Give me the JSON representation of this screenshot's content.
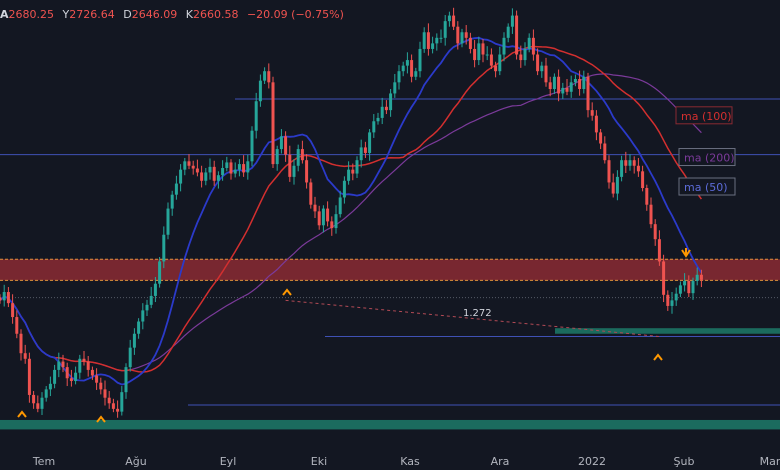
{
  "ohlc": {
    "o_label": "A",
    "o": "2680.25",
    "h_label": "Y",
    "h": "2726.64",
    "l_label": "D",
    "l": "2646.09",
    "c_label": "K",
    "c": "2660.58",
    "change": "−20.09 (−0.75%)"
  },
  "colors": {
    "background": "#131722",
    "up": "#26a69a",
    "down": "#ef5350",
    "ma50": "#2b3aca",
    "ma100": "#d32f2f",
    "ma200": "#7b3a9a",
    "level_line": "#3f51b5",
    "resistance_zone": "#8b2a32",
    "support_zone": "#1b6b5e",
    "arrow_up": "#ff9800"
  },
  "chart_data": {
    "type": "candlestick",
    "xlabels": [
      "Tem",
      "Ağu",
      "Eyl",
      "Eki",
      "Kas",
      "Ara",
      "2022",
      "Şub",
      "Mar"
    ],
    "ma_labels": [
      "ma (100)",
      "ma (200)",
      "ma (50)"
    ],
    "fib_label": "1.272",
    "ylim": [
      2150,
      2950
    ],
    "closes": [
      2410,
      2425,
      2405,
      2380,
      2350,
      2315,
      2305,
      2240,
      2225,
      2215,
      2235,
      2250,
      2260,
      2285,
      2300,
      2290,
      2270,
      2265,
      2280,
      2305,
      2300,
      2285,
      2275,
      2262,
      2250,
      2235,
      2225,
      2215,
      2210,
      2245,
      2290,
      2325,
      2350,
      2372,
      2392,
      2402,
      2418,
      2440,
      2480,
      2528,
      2575,
      2600,
      2620,
      2645,
      2660,
      2652,
      2647,
      2640,
      2625,
      2640,
      2650,
      2625,
      2635,
      2648,
      2658,
      2638,
      2645,
      2655,
      2640,
      2660,
      2715,
      2768,
      2805,
      2822,
      2802,
      2655,
      2682,
      2705,
      2672,
      2632,
      2652,
      2682,
      2662,
      2622,
      2582,
      2570,
      2545,
      2575,
      2552,
      2540,
      2565,
      2595,
      2625,
      2645,
      2638,
      2662,
      2685,
      2675,
      2712,
      2732,
      2738,
      2758,
      2752,
      2782,
      2802,
      2822,
      2832,
      2842,
      2812,
      2822,
      2862,
      2892,
      2862,
      2872,
      2882,
      2882,
      2912,
      2922,
      2902,
      2872,
      2892,
      2882,
      2862,
      2842,
      2872,
      2852,
      2852,
      2832,
      2822,
      2852,
      2882,
      2902,
      2922,
      2852,
      2842,
      2862,
      2882,
      2852,
      2822,
      2832,
      2802,
      2790,
      2812,
      2782,
      2792,
      2785,
      2802,
      2808,
      2790,
      2812,
      2752,
      2742,
      2712,
      2692,
      2662,
      2622,
      2602,
      2632,
      2662,
      2652,
      2662,
      2652,
      2642,
      2612,
      2582,
      2547,
      2520,
      2480,
      2420,
      2400,
      2410,
      2422,
      2437,
      2445,
      2423,
      2445,
      2456,
      2447
    ]
  }
}
